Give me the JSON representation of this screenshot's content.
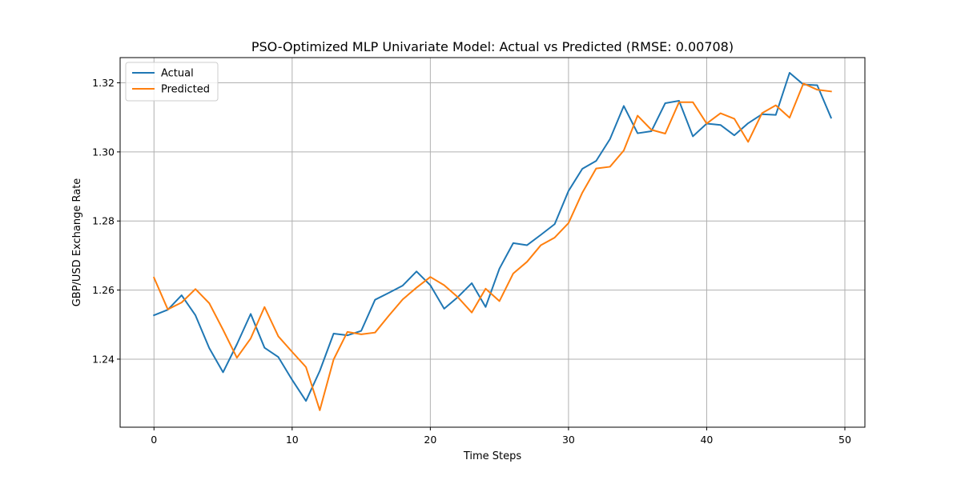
{
  "chart_data": {
    "type": "line",
    "title": "PSO-Optimized MLP Univariate Model: Actual vs Predicted (RMSE: 0.00708)",
    "xlabel": "Time Steps",
    "ylabel": "GBP/USD Exchange Rate",
    "xlim": [
      -2.45,
      51.45
    ],
    "ylim": [
      1.2203,
      1.3273
    ],
    "x_ticks": [
      0,
      10,
      20,
      30,
      40,
      50
    ],
    "y_ticks": [
      1.24,
      1.26,
      1.28,
      1.3,
      1.32
    ],
    "x_tick_labels": [
      "0",
      "10",
      "20",
      "30",
      "40",
      "50"
    ],
    "y_tick_labels": [
      "1.24",
      "1.26",
      "1.28",
      "1.30",
      "1.32"
    ],
    "grid": true,
    "legend_position": "top-left",
    "x": [
      0,
      1,
      2,
      3,
      4,
      5,
      6,
      7,
      8,
      9,
      10,
      11,
      12,
      13,
      14,
      15,
      16,
      17,
      18,
      19,
      20,
      21,
      22,
      23,
      24,
      25,
      26,
      27,
      28,
      29,
      30,
      31,
      32,
      33,
      34,
      35,
      36,
      37,
      38,
      39,
      40,
      41,
      42,
      43,
      44,
      45,
      46,
      47,
      48,
      49
    ],
    "series": [
      {
        "name": "Actual",
        "color": "#1f77b4",
        "values": [
          1.2527,
          1.2543,
          1.2585,
          1.2527,
          1.2432,
          1.2362,
          1.2443,
          1.2531,
          1.2433,
          1.2406,
          1.234,
          1.2279,
          1.2366,
          1.2474,
          1.2469,
          1.2482,
          1.2572,
          1.2592,
          1.2613,
          1.2654,
          1.2614,
          1.2546,
          1.258,
          1.262,
          1.2551,
          1.2662,
          1.2736,
          1.273,
          1.276,
          1.2791,
          1.2887,
          1.2951,
          1.2974,
          1.3037,
          1.3133,
          1.3054,
          1.306,
          1.3141,
          1.3148,
          1.3045,
          1.3082,
          1.3078,
          1.3048,
          1.3083,
          1.3109,
          1.3107,
          1.3229,
          1.3195,
          1.3193,
          1.3099
        ]
      },
      {
        "name": "Predicted",
        "color": "#ff7f0e",
        "values": [
          1.2636,
          1.2544,
          1.2564,
          1.2603,
          1.2562,
          1.2485,
          1.2404,
          1.246,
          1.2551,
          1.2466,
          1.2421,
          1.2377,
          1.2252,
          1.2399,
          1.2479,
          1.2472,
          1.2477,
          1.2526,
          1.2573,
          1.2607,
          1.2638,
          1.2614,
          1.2579,
          1.2535,
          1.2604,
          1.2568,
          1.2648,
          1.2682,
          1.273,
          1.2752,
          1.2794,
          1.2882,
          1.2952,
          1.2957,
          1.3004,
          1.3105,
          1.3064,
          1.3053,
          1.3144,
          1.3144,
          1.3082,
          1.3112,
          1.3096,
          1.3029,
          1.3112,
          1.3135,
          1.3099,
          1.3198,
          1.318,
          1.3175
        ]
      }
    ]
  }
}
